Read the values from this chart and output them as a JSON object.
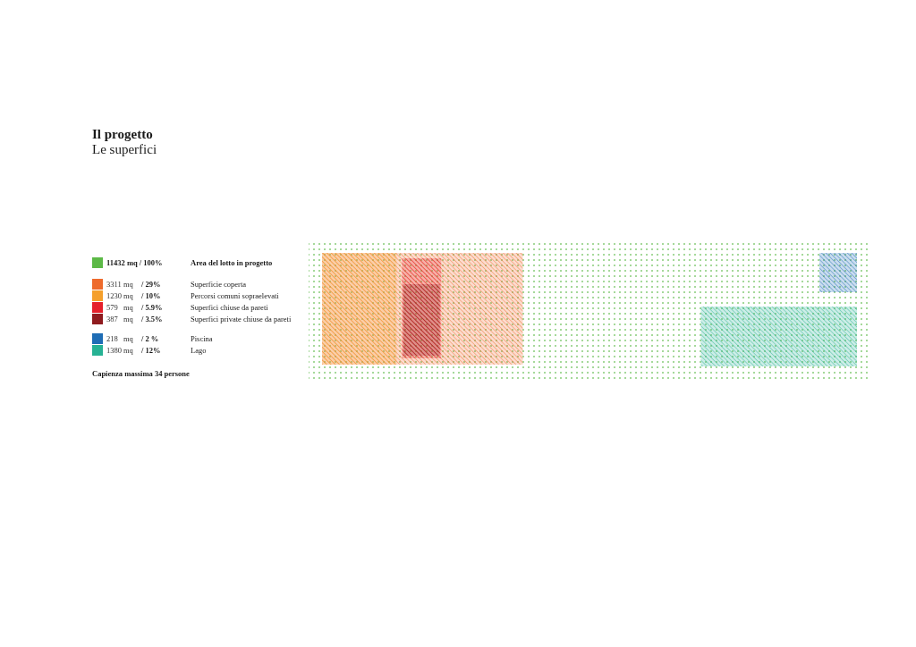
{
  "chart_data": {
    "type": "other",
    "title": "Il progetto",
    "subtitle": "Le superfici",
    "categories": [
      "Area del lotto in progetto",
      "Superficie coperta",
      "Percorsi comuni sopraelevati",
      "Superfici chiuse da pareti",
      "Superfici private chiuse da pareti",
      "Piscina",
      "Lago"
    ],
    "values": [
      11432,
      3311,
      1230,
      579,
      387,
      218,
      1380
    ],
    "value_labels": [
      "11432 mq / 100%",
      "3311 mq / 29%",
      "1230 mq / 10%",
      "579 mq / 5.9%",
      "387 mq / 3.5%",
      "218 mq / 2 %",
      "1380 mq / 12%"
    ],
    "colors": [
      "#5cb947",
      "#ee6b2d",
      "#f5a02c",
      "#e5202b",
      "#8f1b1f",
      "#1f6db5",
      "#27b294"
    ],
    "annotations": [
      "Capienza massima 34 persone"
    ]
  }
}
